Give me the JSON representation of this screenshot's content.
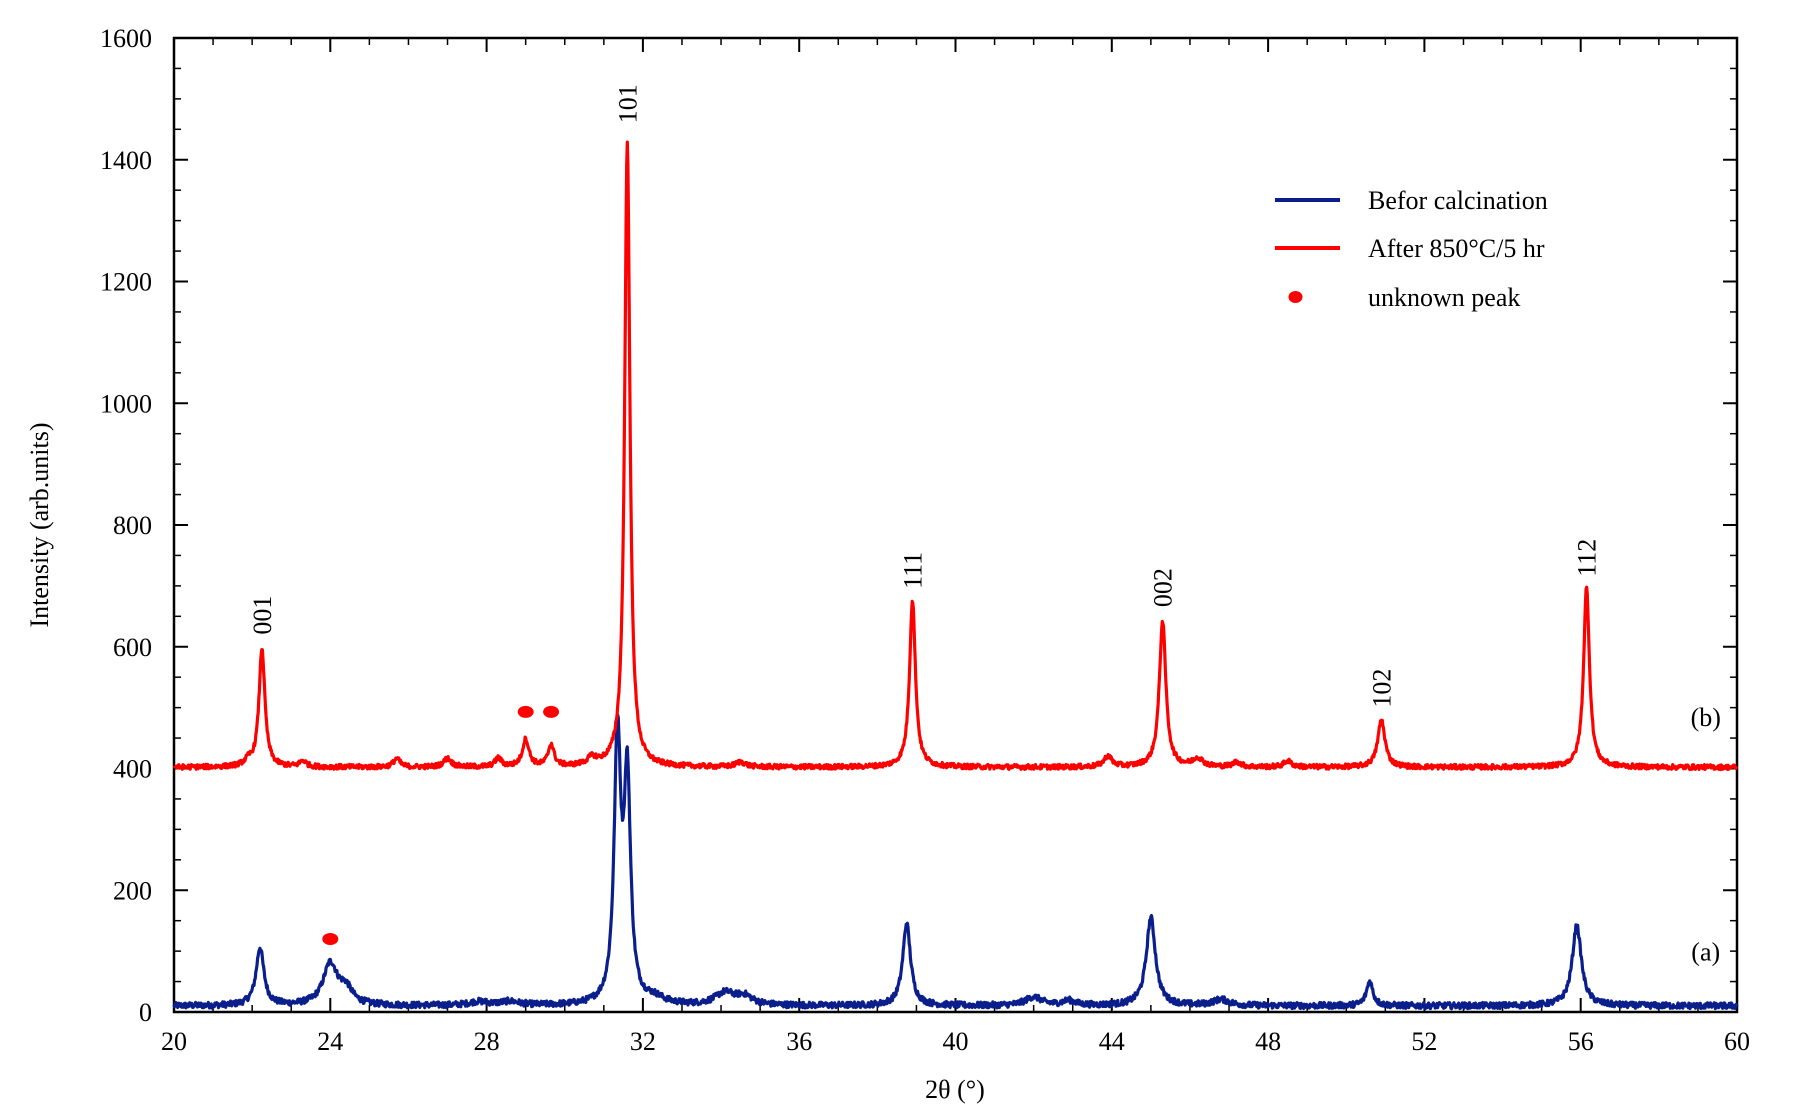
{
  "chart_data": {
    "type": "line",
    "xlabel": "2θ (°)",
    "ylabel": "Intensity (arb.units)",
    "xlim": [
      20,
      60
    ],
    "ylim": [
      0,
      1600
    ],
    "xticks": [
      20,
      24,
      28,
      32,
      36,
      40,
      44,
      48,
      52,
      56,
      60
    ],
    "yticks": [
      0,
      200,
      400,
      600,
      800,
      1000,
      1200,
      1400,
      1600
    ],
    "grid": false,
    "legend": {
      "placement": "top-right",
      "entries": [
        {
          "label": "Befor calcination",
          "marker": "line",
          "color": "#0b1f8c"
        },
        {
          "label": "After 850°C/5 hr",
          "marker": "line",
          "color": "#ff0000"
        },
        {
          "label": "unknown peak",
          "marker": "dot",
          "color": "#ff0000"
        }
      ]
    },
    "series": [
      {
        "name": "Befor calcination",
        "tag": "(a)",
        "tag_position": [
          59.2,
          85
        ],
        "color": "#0b1f8c",
        "baseline": 10,
        "noise": 5,
        "peaks": [
          {
            "x": 22.2,
            "height": 95,
            "width": 0.12
          },
          {
            "x": 24.0,
            "height": 68,
            "width": 0.22
          },
          {
            "x": 24.4,
            "height": 25,
            "width": 0.2
          },
          {
            "x": 27.8,
            "height": 6,
            "width": 0.3
          },
          {
            "x": 28.6,
            "height": 6,
            "width": 0.3
          },
          {
            "x": 31.35,
            "height": 430,
            "width": 0.1
          },
          {
            "x": 31.6,
            "height": 360,
            "width": 0.1
          },
          {
            "x": 32.3,
            "height": 10,
            "width": 0.3
          },
          {
            "x": 34.1,
            "height": 20,
            "width": 0.3
          },
          {
            "x": 34.6,
            "height": 14,
            "width": 0.25
          },
          {
            "x": 38.75,
            "height": 135,
            "width": 0.12
          },
          {
            "x": 42.0,
            "height": 14,
            "width": 0.25
          },
          {
            "x": 42.9,
            "height": 8,
            "width": 0.2
          },
          {
            "x": 45.0,
            "height": 145,
            "width": 0.14
          },
          {
            "x": 46.8,
            "height": 10,
            "width": 0.25
          },
          {
            "x": 50.6,
            "height": 40,
            "width": 0.1
          },
          {
            "x": 55.9,
            "height": 132,
            "width": 0.14
          }
        ]
      },
      {
        "name": "After 850°C/5 hr",
        "tag": "(b)",
        "tag_position": [
          59.2,
          470
        ],
        "color": "#ff0000",
        "baseline": 402,
        "noise": 4,
        "peaks": [
          {
            "x": 21.9,
            "height": 8,
            "width": 0.12
          },
          {
            "x": 22.25,
            "height": 195,
            "width": 0.09
          },
          {
            "x": 23.3,
            "height": 10,
            "width": 0.1
          },
          {
            "x": 25.7,
            "height": 14,
            "width": 0.1
          },
          {
            "x": 27.0,
            "height": 14,
            "width": 0.12
          },
          {
            "x": 28.3,
            "height": 14,
            "width": 0.1
          },
          {
            "x": 29.0,
            "height": 45,
            "width": 0.1
          },
          {
            "x": 29.65,
            "height": 36,
            "width": 0.09
          },
          {
            "x": 30.7,
            "height": 12,
            "width": 0.15
          },
          {
            "x": 31.6,
            "height": 1030,
            "width": 0.08
          },
          {
            "x": 34.5,
            "height": 8,
            "width": 0.15
          },
          {
            "x": 38.9,
            "height": 275,
            "width": 0.09
          },
          {
            "x": 43.9,
            "height": 18,
            "width": 0.12
          },
          {
            "x": 45.3,
            "height": 240,
            "width": 0.1
          },
          {
            "x": 46.2,
            "height": 14,
            "width": 0.15
          },
          {
            "x": 47.2,
            "height": 8,
            "width": 0.12
          },
          {
            "x": 48.5,
            "height": 10,
            "width": 0.12
          },
          {
            "x": 50.9,
            "height": 78,
            "width": 0.11
          },
          {
            "x": 56.15,
            "height": 295,
            "width": 0.09
          }
        ]
      }
    ],
    "peak_labels": [
      {
        "text": "001",
        "x": 22.25,
        "y": 620
      },
      {
        "text": "101",
        "x": 31.6,
        "y": 1460
      },
      {
        "text": "111",
        "x": 38.9,
        "y": 695
      },
      {
        "text": "002",
        "x": 45.3,
        "y": 665
      },
      {
        "text": "102",
        "x": 50.9,
        "y": 500
      },
      {
        "text": "112",
        "x": 56.15,
        "y": 715
      }
    ],
    "unknown_peak_markers": [
      {
        "x": 24.0,
        "y": 120
      },
      {
        "x": 29.0,
        "y": 493
      },
      {
        "x": 29.65,
        "y": 493
      }
    ]
  }
}
